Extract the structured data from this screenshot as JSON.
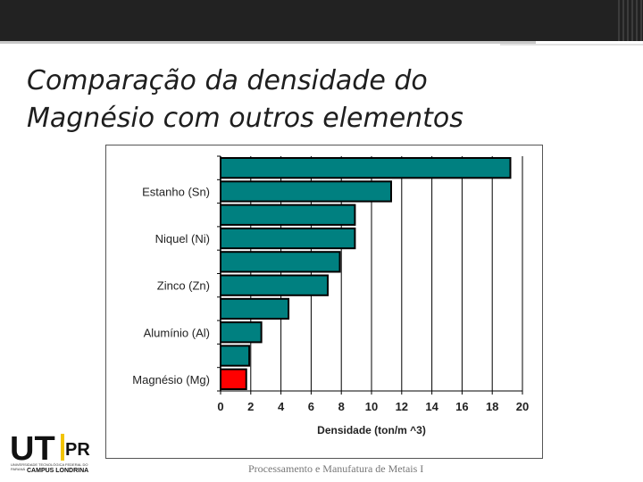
{
  "slide": {
    "title_line1": "Comparação da densidade do",
    "title_line2": "Magnésio com outros elementos",
    "footer": "Processamento e Manufatura de Metais I"
  },
  "logo": {
    "brand_left": "UT",
    "brand_right": "PR",
    "caption": "UNIVERSIDADE TECNOLÓGICA FEDERAL DO PARANÁ",
    "campus": "CAMPUS LONDRINA"
  },
  "colors": {
    "bar": "#008080",
    "highlight": "#ff0000",
    "title": "#1e1e1e",
    "background": "#ffffff"
  },
  "chart_data": {
    "type": "bar",
    "orientation": "horizontal",
    "categories": [
      "",
      "Estanho (Sn)",
      "",
      "Niquel (Ni)",
      "",
      "Zinco (Zn)",
      "",
      "Alumínio (Al)",
      "",
      "Magnésio (Mg)"
    ],
    "values": [
      19.2,
      11.3,
      8.9,
      8.9,
      7.9,
      7.1,
      4.5,
      2.7,
      1.9,
      1.7
    ],
    "highlight_index": 9,
    "xlabel": "Densidade (ton/m ^3)",
    "ylabel": "",
    "xlim": [
      0,
      20
    ],
    "xticks": [
      "0",
      "2",
      "4",
      "6",
      "8",
      "10",
      "12",
      "14",
      "16",
      "18",
      "20"
    ],
    "grid": "vertical"
  }
}
